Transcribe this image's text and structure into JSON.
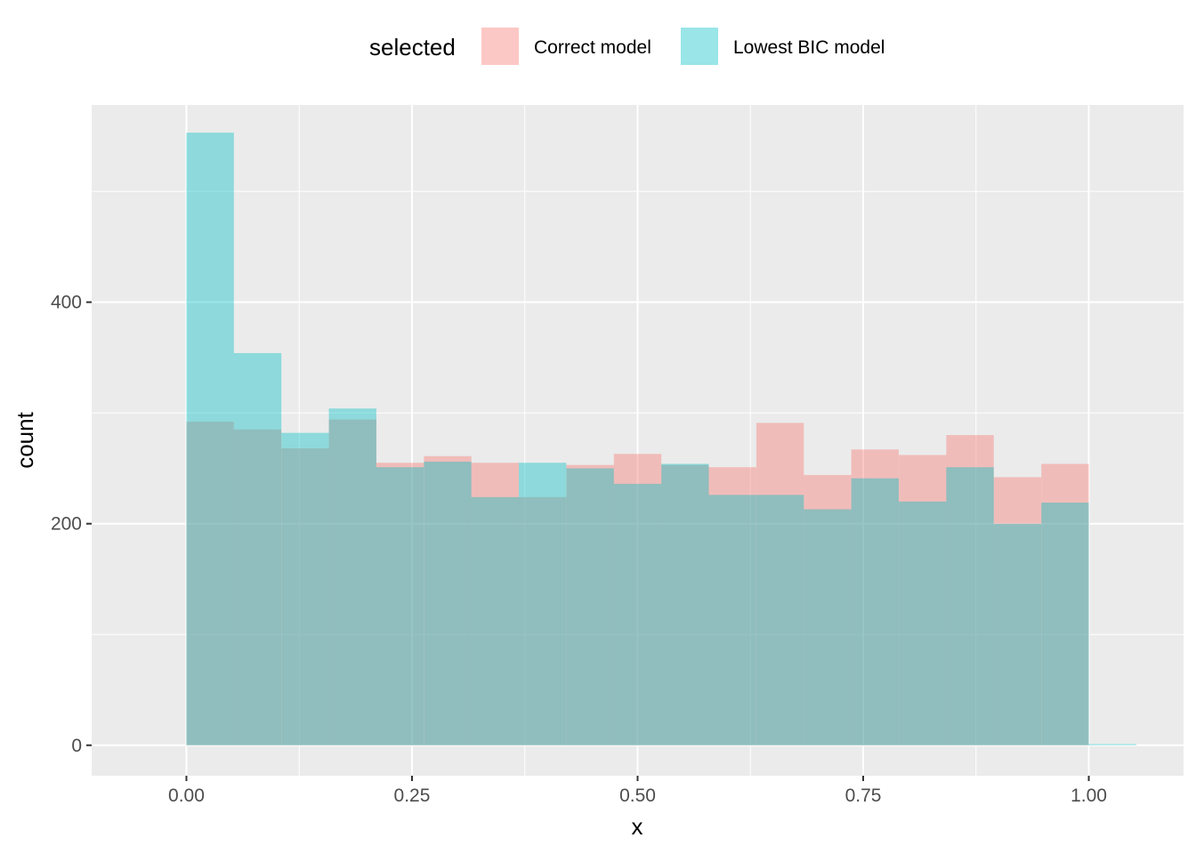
{
  "chart_data": {
    "type": "histogram",
    "xlabel": "x",
    "ylabel": "count",
    "xlim": [
      -0.105,
      1.105
    ],
    "ylim": [
      -27.5,
      578
    ],
    "x_ticks": [
      0.0,
      0.25,
      0.5,
      0.75,
      1.0
    ],
    "x_tick_labels": [
      "0.00",
      "0.25",
      "0.50",
      "0.75",
      "1.00"
    ],
    "y_ticks": [
      0,
      200,
      400
    ],
    "y_tick_labels": [
      "0",
      "200",
      "400"
    ],
    "grid": true,
    "bin_width": 0.0526,
    "bin_starts": [
      0.0,
      0.0526,
      0.1053,
      0.1579,
      0.2105,
      0.2632,
      0.3158,
      0.3684,
      0.4211,
      0.4737,
      0.5263,
      0.5789,
      0.6316,
      0.6842,
      0.7368,
      0.7895,
      0.8421,
      0.8947,
      0.9474,
      1.0
    ],
    "legend": {
      "title": "selected",
      "position": "top"
    },
    "series": [
      {
        "name": "Correct model",
        "color": "#F8766D",
        "values": [
          292,
          285,
          268,
          294,
          255,
          261,
          255,
          224,
          253,
          263,
          253,
          251,
          291,
          244,
          267,
          262,
          280,
          242,
          254,
          0
        ]
      },
      {
        "name": "Lowest BIC model",
        "color": "#00BFC4",
        "values": [
          553,
          354,
          282,
          304,
          251,
          256,
          224,
          255,
          250,
          236,
          254,
          226,
          226,
          213,
          241,
          220,
          251,
          200,
          219,
          1
        ]
      }
    ]
  }
}
